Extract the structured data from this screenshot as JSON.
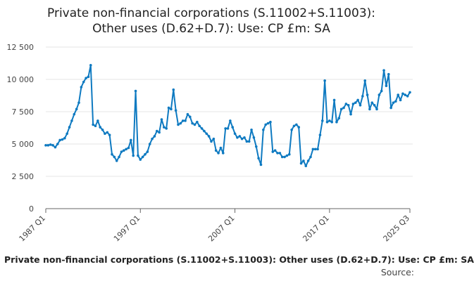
{
  "title_line1": "Private non-financial corporations (S.11002+S.11003):",
  "title_line2": "Other uses (D.62+D.7): Use: CP £m: SA",
  "legend_label": "Private non-financial corporations (S.11002+S.11003): Other uses (D.62+D.7): Use: CP £m: SA",
  "source_label": "Source:",
  "colors": {
    "series": "#0e7ac1",
    "grid": "#e5e5e5",
    "axis": "#666666"
  },
  "chart_data": {
    "type": "line",
    "title": "Private non-financial corporations (S.11002+S.11003): Other uses (D.62+D.7): Use: CP £m: SA",
    "xlabel": "",
    "ylabel": "",
    "ylim": [
      0,
      12500
    ],
    "yticks": [
      0,
      2500,
      5000,
      7500,
      10000,
      12500
    ],
    "ytick_labels": [
      "0",
      "2 500",
      "5 000",
      "7 500",
      "10 000",
      "12 500"
    ],
    "xtick_labels": [
      "1987 Q1",
      "1997 Q1",
      "2007 Q1",
      "2017 Q1",
      "2025 Q3"
    ],
    "xtick_index": [
      0,
      40,
      80,
      120,
      154
    ],
    "series": [
      {
        "name": "Private non-financial corporations (S.11002+S.11003): Other uses (D.62+D.7): Use: CP £m: SA",
        "values": [
          4900,
          4900,
          4950,
          4900,
          4750,
          5000,
          5300,
          5350,
          5450,
          5800,
          6300,
          6800,
          7300,
          7700,
          8200,
          9400,
          9800,
          10100,
          10200,
          11100,
          6500,
          6400,
          6800,
          6300,
          6100,
          5800,
          5900,
          5700,
          4200,
          4000,
          3700,
          4000,
          4400,
          4500,
          4600,
          4700,
          5300,
          4100,
          9100,
          4100,
          3800,
          4000,
          4200,
          4400,
          5000,
          5400,
          5600,
          6000,
          5900,
          6900,
          6300,
          6200,
          7800,
          7700,
          9200,
          7600,
          6500,
          6600,
          6800,
          6800,
          7300,
          7100,
          6600,
          6500,
          6700,
          6400,
          6200,
          6000,
          5800,
          5600,
          5200,
          5400,
          4500,
          4300,
          4700,
          4300,
          6200,
          6200,
          6800,
          6300,
          5800,
          5500,
          5600,
          5400,
          5500,
          5200,
          5200,
          6100,
          5500,
          4800,
          3900,
          3400,
          6100,
          6500,
          6600,
          6700,
          4400,
          4500,
          4300,
          4300,
          4000,
          4000,
          4100,
          4200,
          6100,
          6400,
          6500,
          6300,
          3500,
          3700,
          3300,
          3700,
          4000,
          4600,
          4600,
          4600,
          5700,
          6800,
          9900,
          6700,
          6800,
          6700,
          8400,
          6700,
          7000,
          7700,
          7800,
          8100,
          8000,
          7300,
          8100,
          8200,
          8400,
          8000,
          8700,
          9900,
          8800,
          7700,
          8200,
          8000,
          7700,
          8800,
          9100,
          10700,
          9500,
          10400,
          7800,
          8200,
          8300,
          8800,
          8400,
          8900,
          8800,
          8700,
          9000
        ]
      }
    ]
  }
}
